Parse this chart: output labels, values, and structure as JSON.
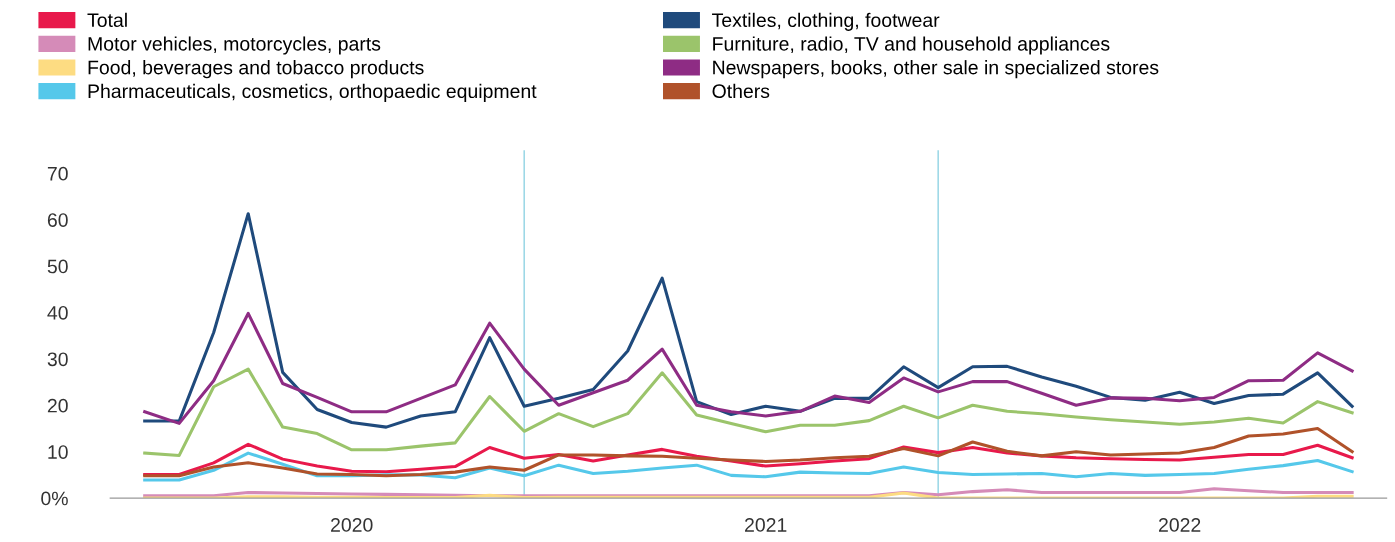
{
  "chart_data": {
    "type": "line",
    "x": [
      "2020-01",
      "2020-02",
      "2020-03",
      "2020-04",
      "2020-05",
      "2020-06",
      "2020-07",
      "2020-08",
      "2020-09",
      "2020-10",
      "2020-11",
      "2020-12",
      "2021-01",
      "2021-02",
      "2021-03",
      "2021-04",
      "2021-05",
      "2021-06",
      "2021-07",
      "2021-08",
      "2021-09",
      "2021-10",
      "2021-11",
      "2021-12",
      "2022-01",
      "2022-02",
      "2022-03",
      "2022-04",
      "2022-05",
      "2022-06",
      "2022-07",
      "2022-08",
      "2022-09",
      "2022-10",
      "2022-11",
      "2022-12"
    ],
    "series": [
      {
        "name": "Total",
        "color": "#e8194b",
        "values": [
          5.1,
          5.1,
          7.6,
          11.6,
          8.4,
          6.9,
          5.8,
          5.7,
          6.2,
          6.8,
          10.9,
          8.6,
          9.4,
          8.0,
          9.3,
          10.5,
          9.0,
          8.0,
          6.9,
          7.4,
          8.0,
          8.5,
          11.0,
          9.8,
          10.9,
          9.7,
          9.1,
          8.7,
          8.5,
          8.3,
          8.2,
          8.8,
          9.4,
          9.4,
          11.4,
          8.7
        ]
      },
      {
        "name": "Motor vehicles, motorcycles, parts",
        "color": "#d58bb8",
        "values": [
          0.5,
          0.5,
          0.5,
          1.2,
          1.1,
          1.0,
          0.9,
          0.8,
          0.7,
          0.6,
          0.5,
          0.5,
          0.5,
          0.5,
          0.5,
          0.5,
          0.5,
          0.5,
          0.5,
          0.5,
          0.5,
          0.5,
          1.2,
          0.7,
          1.4,
          1.8,
          1.2,
          1.2,
          1.2,
          1.2,
          1.2,
          2.0,
          1.6,
          1.2,
          1.2,
          1.2
        ]
      },
      {
        "name": "Food, beverages and tobacco products",
        "color": "#fddc82",
        "values": [
          0,
          0,
          0,
          0.3,
          0.3,
          0.2,
          0.2,
          0.1,
          0.1,
          0.1,
          0.6,
          0.1,
          0.2,
          0.2,
          0.2,
          0.2,
          0.2,
          0.2,
          0.2,
          0.2,
          0.2,
          0.2,
          1.1,
          0,
          0,
          0,
          0,
          0,
          0,
          0,
          0,
          0,
          0,
          0,
          0.4,
          0.4
        ]
      },
      {
        "name": "Pharmaceuticals, cosmetics, orthopaedic equipment",
        "color": "#55c8ea",
        "values": [
          3.9,
          3.9,
          6.0,
          9.7,
          7.3,
          4.8,
          4.8,
          5.0,
          5.0,
          4.4,
          6.5,
          4.8,
          7.1,
          5.3,
          5.8,
          6.5,
          7.1,
          4.9,
          4.6,
          5.6,
          5.4,
          5.3,
          6.7,
          5.5,
          5.1,
          5.2,
          5.3,
          4.6,
          5.3,
          4.9,
          5.1,
          5.3,
          6.2,
          7.0,
          8.1,
          5.7
        ]
      },
      {
        "name": "Textiles, clothing, footwear",
        "color": "#1f4a7c",
        "values": [
          16.6,
          16.6,
          35.7,
          61.3,
          27.1,
          19.1,
          16.3,
          15.3,
          17.7,
          18.6,
          34.6,
          19.8,
          21.5,
          23.4,
          31.7,
          47.4,
          20.8,
          18.0,
          19.8,
          18.7,
          21.5,
          21.5,
          28.3,
          23.8,
          28.3,
          28.4,
          26.1,
          24.1,
          21.7,
          21.1,
          22.8,
          20.4,
          22.1,
          22.4,
          27.0,
          19.8
        ]
      },
      {
        "name": "Furniture, radio, TV and household appliances",
        "color": "#9bc46b",
        "values": [
          9.7,
          9.2,
          24.0,
          27.8,
          15.3,
          13.9,
          10.4,
          10.4,
          11.2,
          11.9,
          21.9,
          14.4,
          18.2,
          15.4,
          18.2,
          27.0,
          17.9,
          16.1,
          14.3,
          15.7,
          15.7,
          16.7,
          19.8,
          17.3,
          20.0,
          18.7,
          18.2,
          17.5,
          16.9,
          16.4,
          15.9,
          16.4,
          17.2,
          16.2,
          20.8,
          18.4
        ]
      },
      {
        "name": "Newspapers, books, other sale in specialized stores",
        "color": "#8e2c84",
        "values": [
          18.6,
          16.1,
          25.3,
          39.8,
          24.7,
          21.7,
          18.6,
          18.6,
          21.5,
          24.4,
          37.7,
          27.8,
          20.0,
          22.7,
          25.4,
          32.1,
          20.0,
          18.6,
          17.7,
          18.7,
          22.0,
          20.6,
          25.9,
          22.9,
          25.1,
          25.1,
          22.6,
          20.0,
          21.6,
          21.5,
          21.0,
          21.7,
          25.3,
          25.4,
          31.3,
          27.4
        ]
      },
      {
        "name": "Others",
        "color": "#b0522a",
        "values": [
          4.8,
          4.8,
          6.7,
          7.6,
          6.5,
          5.2,
          5.1,
          4.8,
          5.1,
          5.6,
          6.7,
          6.0,
          9.3,
          9.3,
          9.1,
          9.0,
          8.6,
          8.2,
          7.9,
          8.2,
          8.7,
          9.0,
          10.7,
          9.1,
          12.1,
          10.1,
          9.1,
          10.0,
          9.3,
          9.5,
          9.7,
          10.9,
          13.4,
          13.8,
          15.0,
          10.0
        ]
      }
    ],
    "ylim": [
      0,
      75
    ],
    "yticks": [
      {
        "value": 0,
        "label": "0%"
      },
      10,
      20,
      30,
      40,
      50,
      60,
      70
    ],
    "xlim": [
      "2019-12",
      "2023-01"
    ],
    "xticks": [
      {
        "value": "2020-07",
        "label": "2020"
      },
      {
        "value": "2021-07",
        "label": "2021"
      },
      {
        "value": "2022-07",
        "label": "2022"
      }
    ],
    "ref_lines": [
      {
        "axis": "x",
        "value": "2020-12",
        "color": "#8fd3e3"
      },
      {
        "axis": "x",
        "value": "2021-12",
        "color": "#8fd3e3"
      }
    ],
    "legend": "top",
    "grid": false,
    "marker": "none",
    "line_style": "solid"
  }
}
